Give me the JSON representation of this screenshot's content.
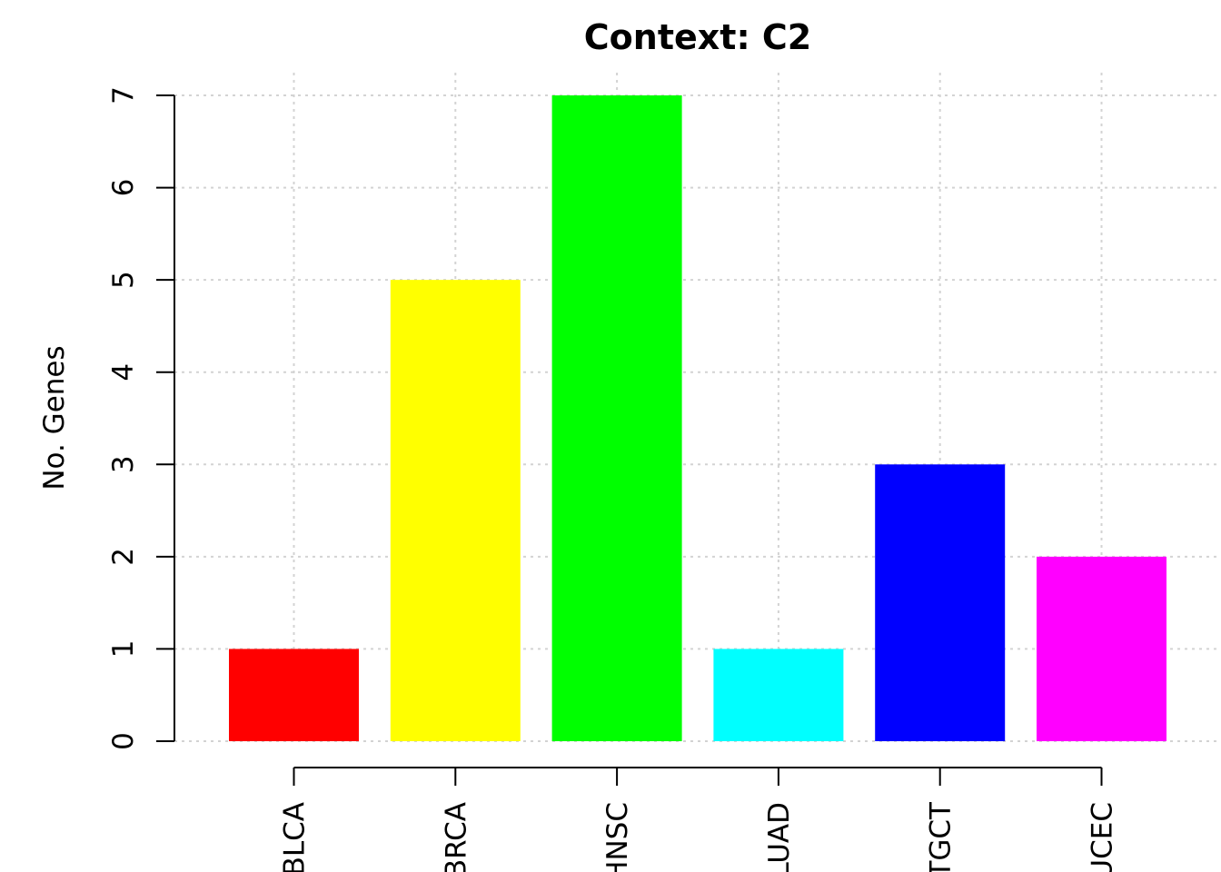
{
  "chart_data": {
    "type": "bar",
    "title": "Context: C2",
    "xlabel": "",
    "ylabel": "No. Genes",
    "categories": [
      "BLCA",
      "BRCA",
      "HNSC",
      "LUAD",
      "TGCT",
      "UCEC"
    ],
    "values": [
      1,
      5,
      7,
      1,
      3,
      2
    ],
    "colors": [
      "#ff0000",
      "#ffff00",
      "#00ff00",
      "#00ffff",
      "#0000ff",
      "#ff00ff"
    ],
    "ylim": [
      0,
      7
    ],
    "yticks": [
      0,
      1,
      2,
      3,
      4,
      5,
      6,
      7
    ],
    "grid": true,
    "legend": "none"
  }
}
